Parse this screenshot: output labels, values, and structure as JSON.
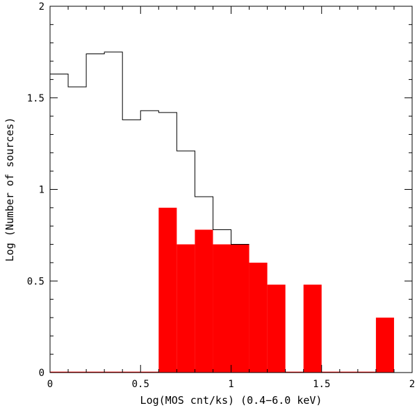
{
  "colors": {
    "background": "#ffffff",
    "axes": "#000000",
    "outline": "#000000",
    "fill": "#ff0000"
  },
  "chart_data": {
    "type": "bar",
    "title": "",
    "xlabel": "Log(MOS cnt/ks) (0.4−6.0 keV)",
    "ylabel": "Log (Number of sources)",
    "xlim": [
      0,
      2
    ],
    "ylim": [
      0,
      2
    ],
    "xticks": [
      0,
      0.5,
      1,
      1.5,
      2
    ],
    "xtick_labels": [
      "0",
      "0.5",
      "1",
      "1.5",
      "2"
    ],
    "yticks": [
      0,
      0.5,
      1,
      1.5,
      2
    ],
    "ytick_labels": [
      "0",
      "0.5",
      "1",
      "1.5",
      "2"
    ],
    "grid": false,
    "bin_edges": [
      0,
      0.1,
      0.2,
      0.3,
      0.4,
      0.5,
      0.6,
      0.7,
      0.8,
      0.9,
      1.0,
      1.1,
      1.2,
      1.3,
      1.4,
      1.5,
      1.6,
      1.7,
      1.8,
      1.9
    ],
    "series": [
      {
        "style": "step-outline",
        "values": [
          1.63,
          1.56,
          1.74,
          1.75,
          1.38,
          1.43,
          1.42,
          1.21,
          0.96,
          0.78,
          0.7
        ]
      },
      {
        "style": "filled",
        "values": [
          0,
          0,
          0,
          0,
          0,
          0,
          0.9,
          0.7,
          0.78,
          0.7,
          0.7,
          0.6,
          0.48,
          0,
          0.48,
          0,
          0,
          0,
          0.3
        ]
      }
    ]
  }
}
